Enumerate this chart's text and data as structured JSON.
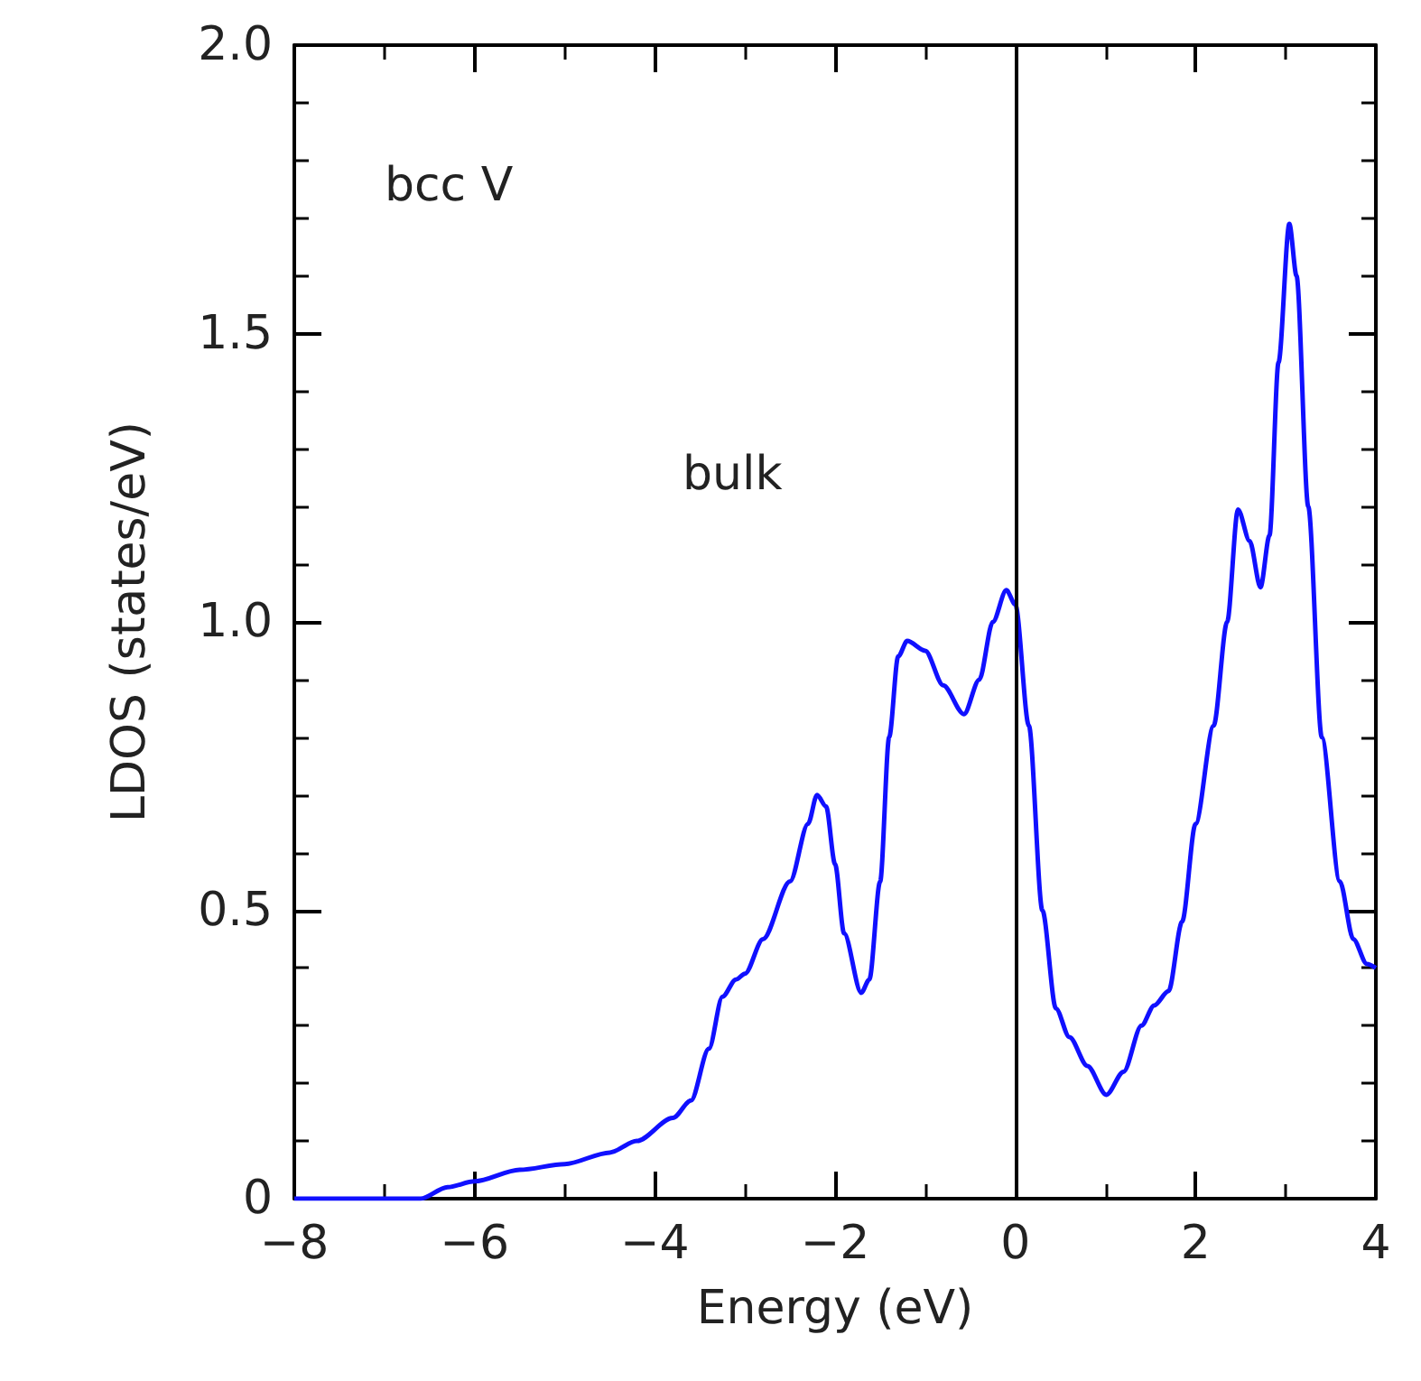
{
  "chart_data": {
    "type": "line",
    "xlabel": "Energy (eV)",
    "ylabel": "LDOS (states/eV)",
    "annotations": [
      "bcc V",
      "bulk"
    ],
    "xlim": [
      -8,
      4
    ],
    "ylim": [
      0,
      2
    ],
    "xticks": [
      {
        "value": -8,
        "label": "−8"
      },
      {
        "value": -6,
        "label": "−6"
      },
      {
        "value": -4,
        "label": "−4"
      },
      {
        "value": -2,
        "label": "−2"
      },
      0,
      2,
      4
    ],
    "yticks": [
      0,
      0.5,
      {
        "value": 1,
        "label": "1.0"
      },
      1.5,
      {
        "value": 2,
        "label": "2.0"
      }
    ],
    "grid": false,
    "marker": "none",
    "line_style": "solid",
    "ref_lines": [
      {
        "axis": "x",
        "value": 0,
        "color": "#000000"
      }
    ],
    "series": [
      {
        "color": "#1010ff",
        "x": [
          -8,
          -7,
          -6.6,
          -6.3,
          -6,
          -5.5,
          -5,
          -4.5,
          -4.2,
          -3.8,
          -3.6,
          -3.4,
          -3.25,
          -3.1,
          -3.0,
          -2.8,
          -2.5,
          -2.3,
          -2.2,
          -2.1,
          -2.0,
          -1.9,
          -1.71,
          -1.62,
          -1.5,
          -1.4,
          -1.3,
          -1.2,
          -1.0,
          -0.8,
          -0.57,
          -0.4,
          -0.25,
          -0.1,
          0,
          0.15,
          0.3,
          0.45,
          0.6,
          0.8,
          1.01,
          1.2,
          1.4,
          1.54,
          1.7,
          1.85,
          2.0,
          2.2,
          2.35,
          2.47,
          2.6,
          2.72,
          2.82,
          2.92,
          3.04,
          3.12,
          3.25,
          3.4,
          3.6,
          3.75,
          3.9,
          4
        ],
        "values": [
          0,
          0,
          0,
          0.02,
          0.03,
          0.05,
          0.06,
          0.08,
          0.1,
          0.14,
          0.17,
          0.26,
          0.35,
          0.38,
          0.39,
          0.45,
          0.55,
          0.65,
          0.7,
          0.68,
          0.58,
          0.46,
          0.357,
          0.38,
          0.55,
          0.8,
          0.94,
          0.967,
          0.95,
          0.89,
          0.84,
          0.9,
          1.0,
          1.055,
          1.03,
          0.82,
          0.5,
          0.33,
          0.28,
          0.23,
          0.18,
          0.22,
          0.3,
          0.335,
          0.36,
          0.48,
          0.65,
          0.82,
          1.0,
          1.195,
          1.14,
          1.06,
          1.15,
          1.45,
          1.69,
          1.6,
          1.2,
          0.8,
          0.55,
          0.45,
          0.407,
          0.4
        ]
      }
    ]
  }
}
